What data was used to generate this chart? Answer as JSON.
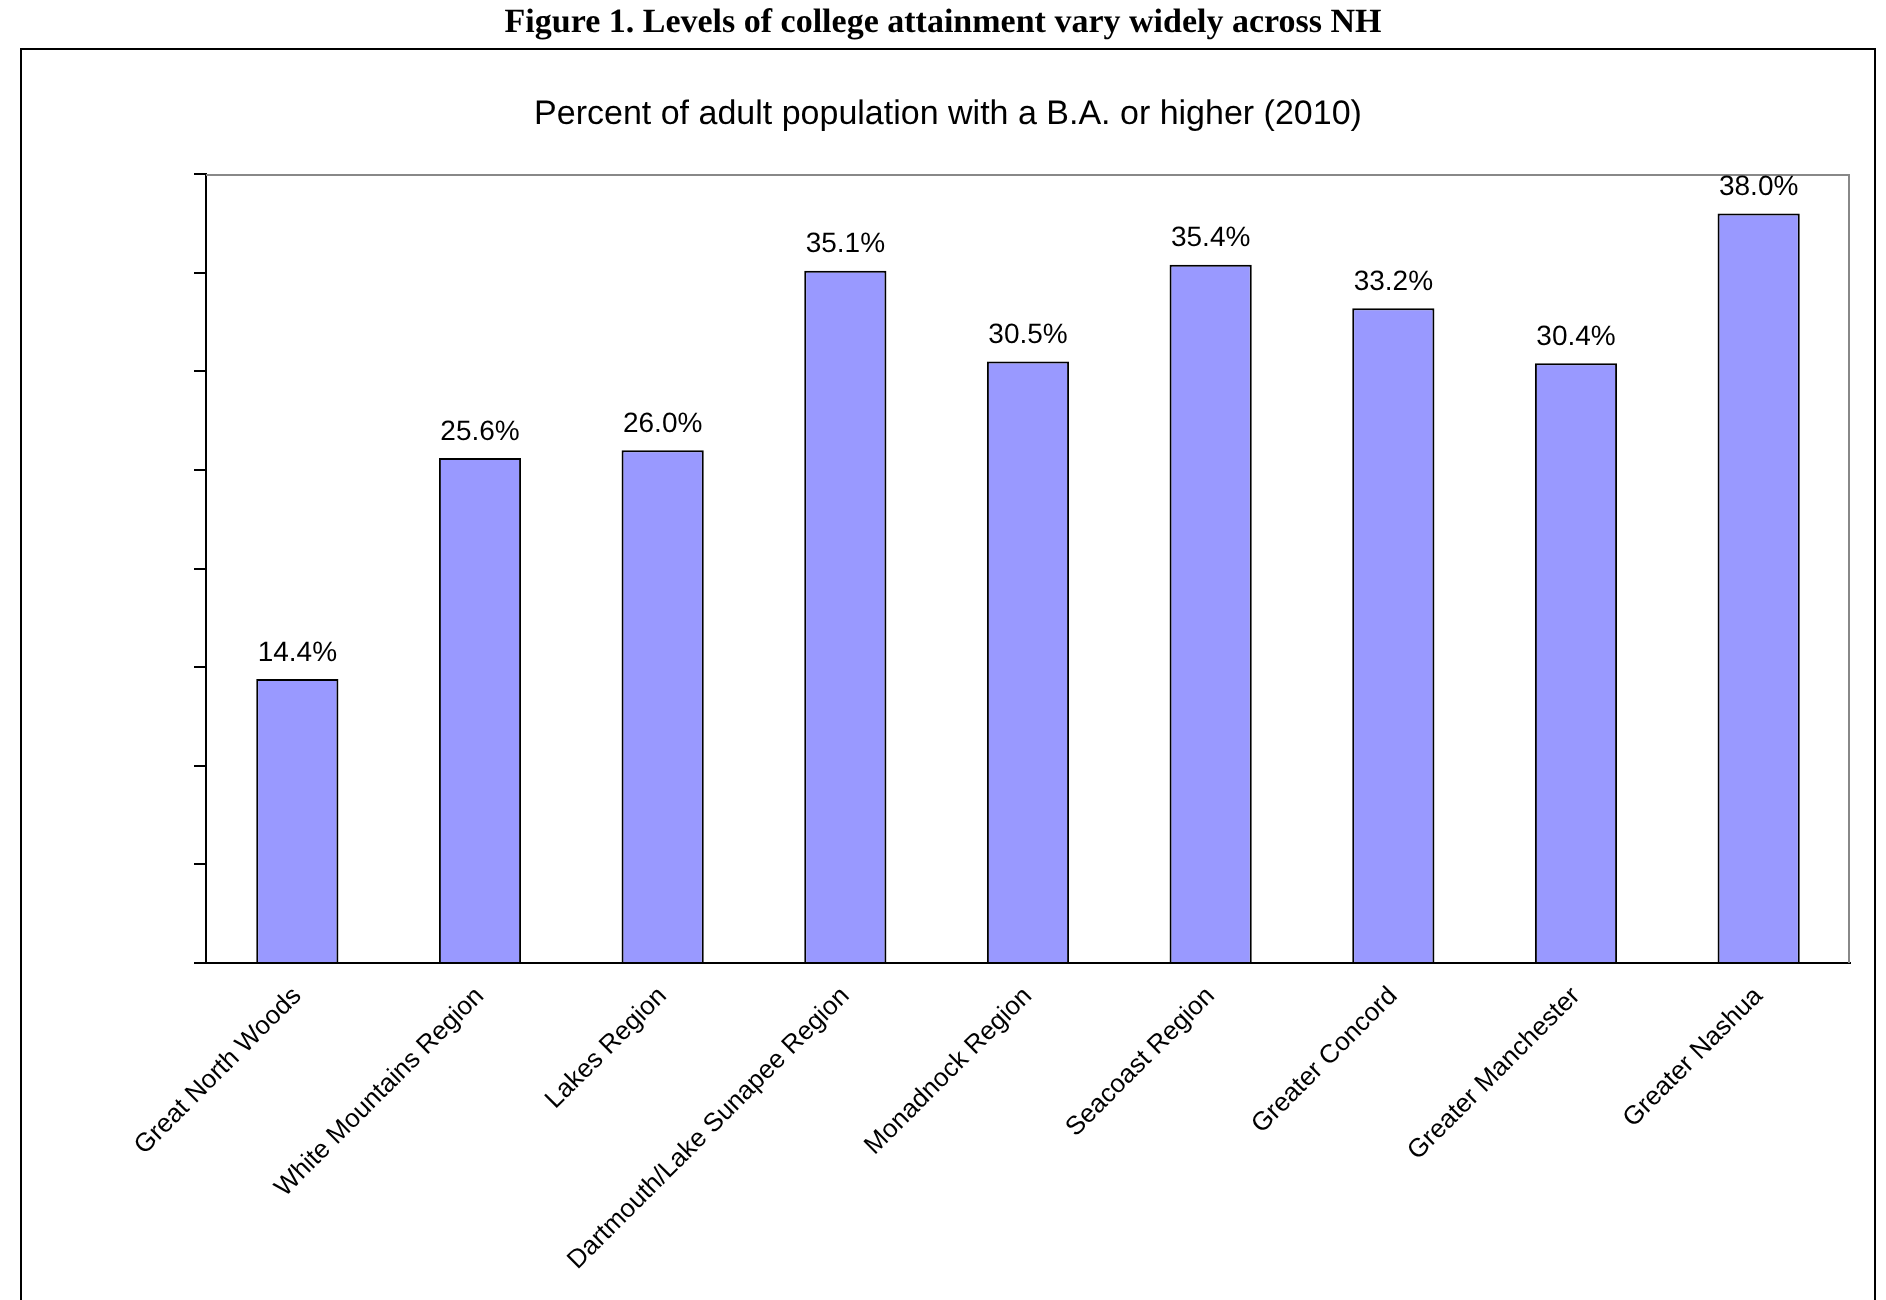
{
  "chart_data": {
    "type": "bar",
    "title": "Figure 1. Levels of college attainment vary widely across NH",
    "subtitle": "Percent of adult population with a B.A. or higher (2010)",
    "categories": [
      "Great North Woods",
      "White Mountains Region",
      "Lakes Region",
      "Dartmouth/Lake Sunapee Region",
      "Monadnock Region",
      "Seacoast Region",
      "Greater Concord",
      "Greater Manchester",
      "Greater Nashua"
    ],
    "values": [
      14.4,
      25.6,
      26.0,
      35.1,
      30.5,
      35.4,
      33.2,
      30.4,
      38.0
    ],
    "value_labels": [
      "14.4%",
      "25.6%",
      "26.0%",
      "35.1%",
      "30.5%",
      "35.4%",
      "33.2%",
      "30.4%",
      "38.0%"
    ],
    "color": "#9999ff",
    "ylim": [
      0,
      40
    ],
    "yticks": [
      {
        "value": 0,
        "label": null
      },
      {
        "value": 5,
        "label": null
      },
      {
        "value": 10,
        "label": null
      },
      {
        "value": 15,
        "label": null
      },
      {
        "value": 20,
        "label": null
      },
      {
        "value": 25,
        "label": null
      },
      {
        "value": 30,
        "label": null
      },
      {
        "value": 35,
        "label": null
      },
      {
        "value": 40,
        "label": null
      }
    ],
    "tick_labels": "x",
    "grid": false,
    "legend": false
  }
}
